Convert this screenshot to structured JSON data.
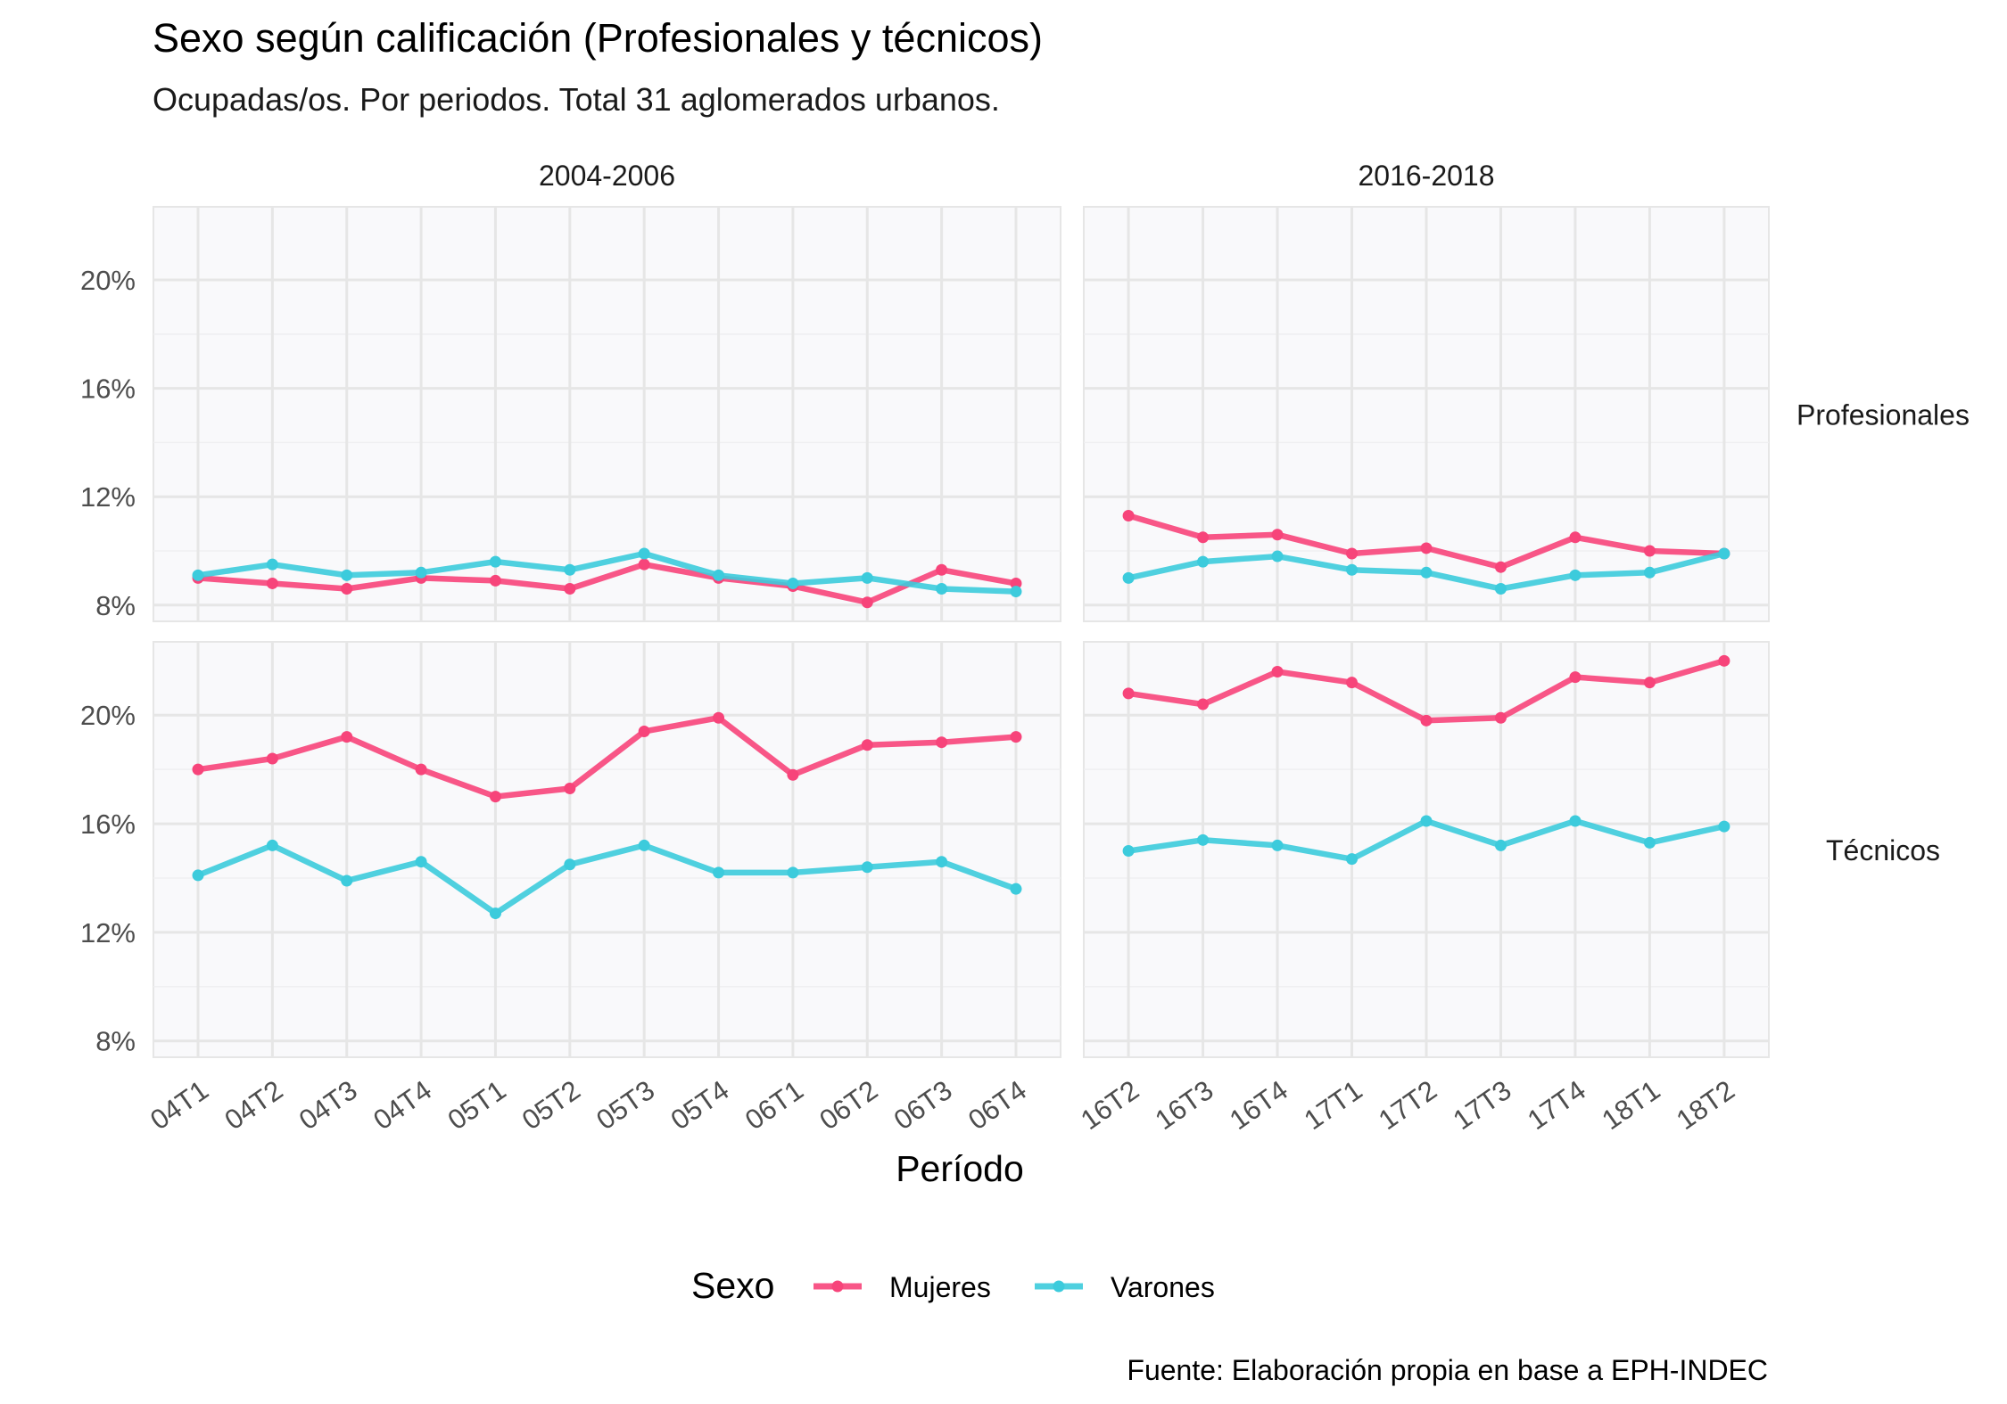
{
  "title": "Sexo según calificación (Profesionales y técnicos)",
  "subtitle": "Ocupadas/os. Por periodos. Total 31 aglomerados urbanos.",
  "caption": "Fuente: Elaboración propia en base a EPH-INDEC",
  "colors": {
    "Mujeres": "#f7447a",
    "Varones": "#3ccbdc",
    "panel_bg": "#f9f9fb",
    "grid": "#e6e6e6"
  },
  "chart_data": {
    "type": "line",
    "xlabel": "Período",
    "ylabel": "",
    "y_ticks": [
      "8%",
      "12%",
      "16%",
      "20%"
    ],
    "y_tick_values": [
      8,
      12,
      16,
      20
    ],
    "ylim": [
      7.4,
      22.7
    ],
    "legend": {
      "title": "Sexo",
      "position": "bottom",
      "entries": [
        "Mujeres",
        "Varones"
      ]
    },
    "columns": [
      {
        "label": "2004-2006",
        "x": [
          "04T1",
          "04T2",
          "04T3",
          "04T4",
          "05T1",
          "05T2",
          "05T3",
          "05T4",
          "06T1",
          "06T2",
          "06T3",
          "06T4"
        ]
      },
      {
        "label": "2016-2018",
        "x": [
          "16T2",
          "16T3",
          "16T4",
          "17T1",
          "17T2",
          "17T3",
          "17T4",
          "18T1",
          "18T2"
        ]
      }
    ],
    "rows": [
      {
        "label": "Profesionales",
        "panels": [
          {
            "series": [
              {
                "name": "Mujeres",
                "values": [
                  9.0,
                  8.8,
                  8.6,
                  9.0,
                  8.9,
                  8.6,
                  9.5,
                  9.0,
                  8.7,
                  8.1,
                  9.3,
                  8.8
                ]
              },
              {
                "name": "Varones",
                "values": [
                  9.1,
                  9.5,
                  9.1,
                  9.2,
                  9.6,
                  9.3,
                  9.9,
                  9.1,
                  8.8,
                  9.0,
                  8.6,
                  8.5
                ]
              }
            ]
          },
          {
            "series": [
              {
                "name": "Mujeres",
                "values": [
                  11.3,
                  10.5,
                  10.6,
                  9.9,
                  10.1,
                  9.4,
                  10.5,
                  10.0,
                  9.9
                ]
              },
              {
                "name": "Varones",
                "values": [
                  9.0,
                  9.6,
                  9.8,
                  9.3,
                  9.2,
                  8.6,
                  9.1,
                  9.2,
                  9.9
                ]
              }
            ]
          }
        ]
      },
      {
        "label": "Técnicos",
        "panels": [
          {
            "series": [
              {
                "name": "Mujeres",
                "values": [
                  18.0,
                  18.4,
                  19.2,
                  18.0,
                  17.0,
                  17.3,
                  19.4,
                  19.9,
                  17.8,
                  18.9,
                  19.0,
                  19.2
                ]
              },
              {
                "name": "Varones",
                "values": [
                  14.1,
                  15.2,
                  13.9,
                  14.6,
                  12.7,
                  14.5,
                  15.2,
                  14.2,
                  14.2,
                  14.4,
                  14.6,
                  13.6
                ]
              }
            ]
          },
          {
            "series": [
              {
                "name": "Mujeres",
                "values": [
                  20.8,
                  20.4,
                  21.6,
                  21.2,
                  19.8,
                  19.9,
                  21.4,
                  21.2,
                  22.0
                ]
              },
              {
                "name": "Varones",
                "values": [
                  15.0,
                  15.4,
                  15.2,
                  14.7,
                  16.1,
                  15.2,
                  16.1,
                  15.3,
                  15.9
                ]
              }
            ]
          }
        ]
      }
    ]
  }
}
